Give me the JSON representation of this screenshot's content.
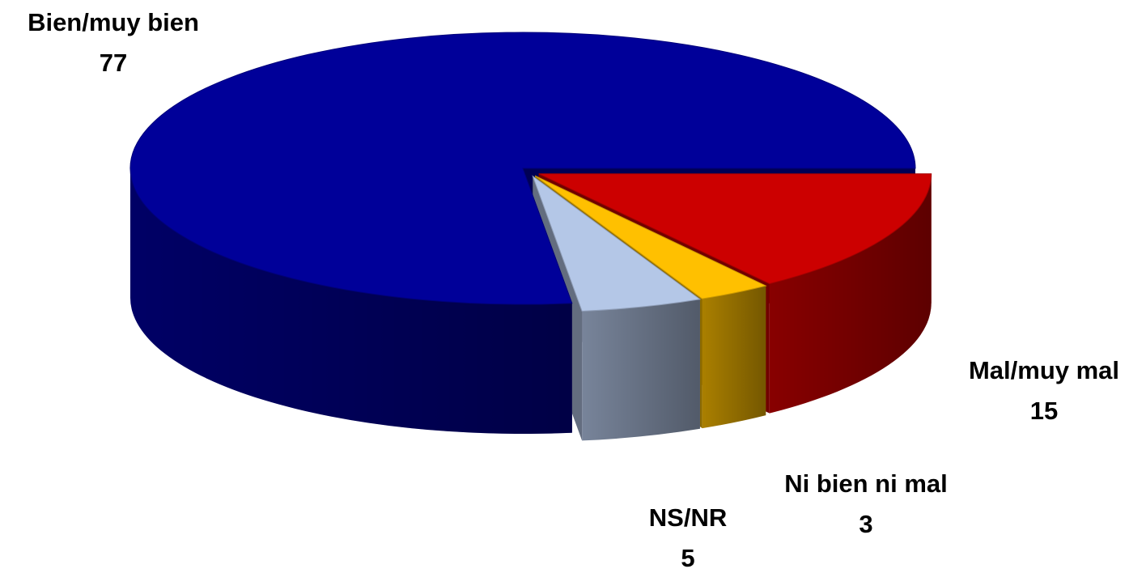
{
  "chart_data": {
    "type": "pie",
    "categories": [
      "Mal/muy mal",
      "Ni bien ni mal",
      "NS/NR",
      "Bien/muy bien"
    ],
    "values": [
      15,
      3,
      5,
      77
    ],
    "colors": [
      "#cc0000",
      "#ffc000",
      "#b4c7e7",
      "#000099"
    ]
  }
}
